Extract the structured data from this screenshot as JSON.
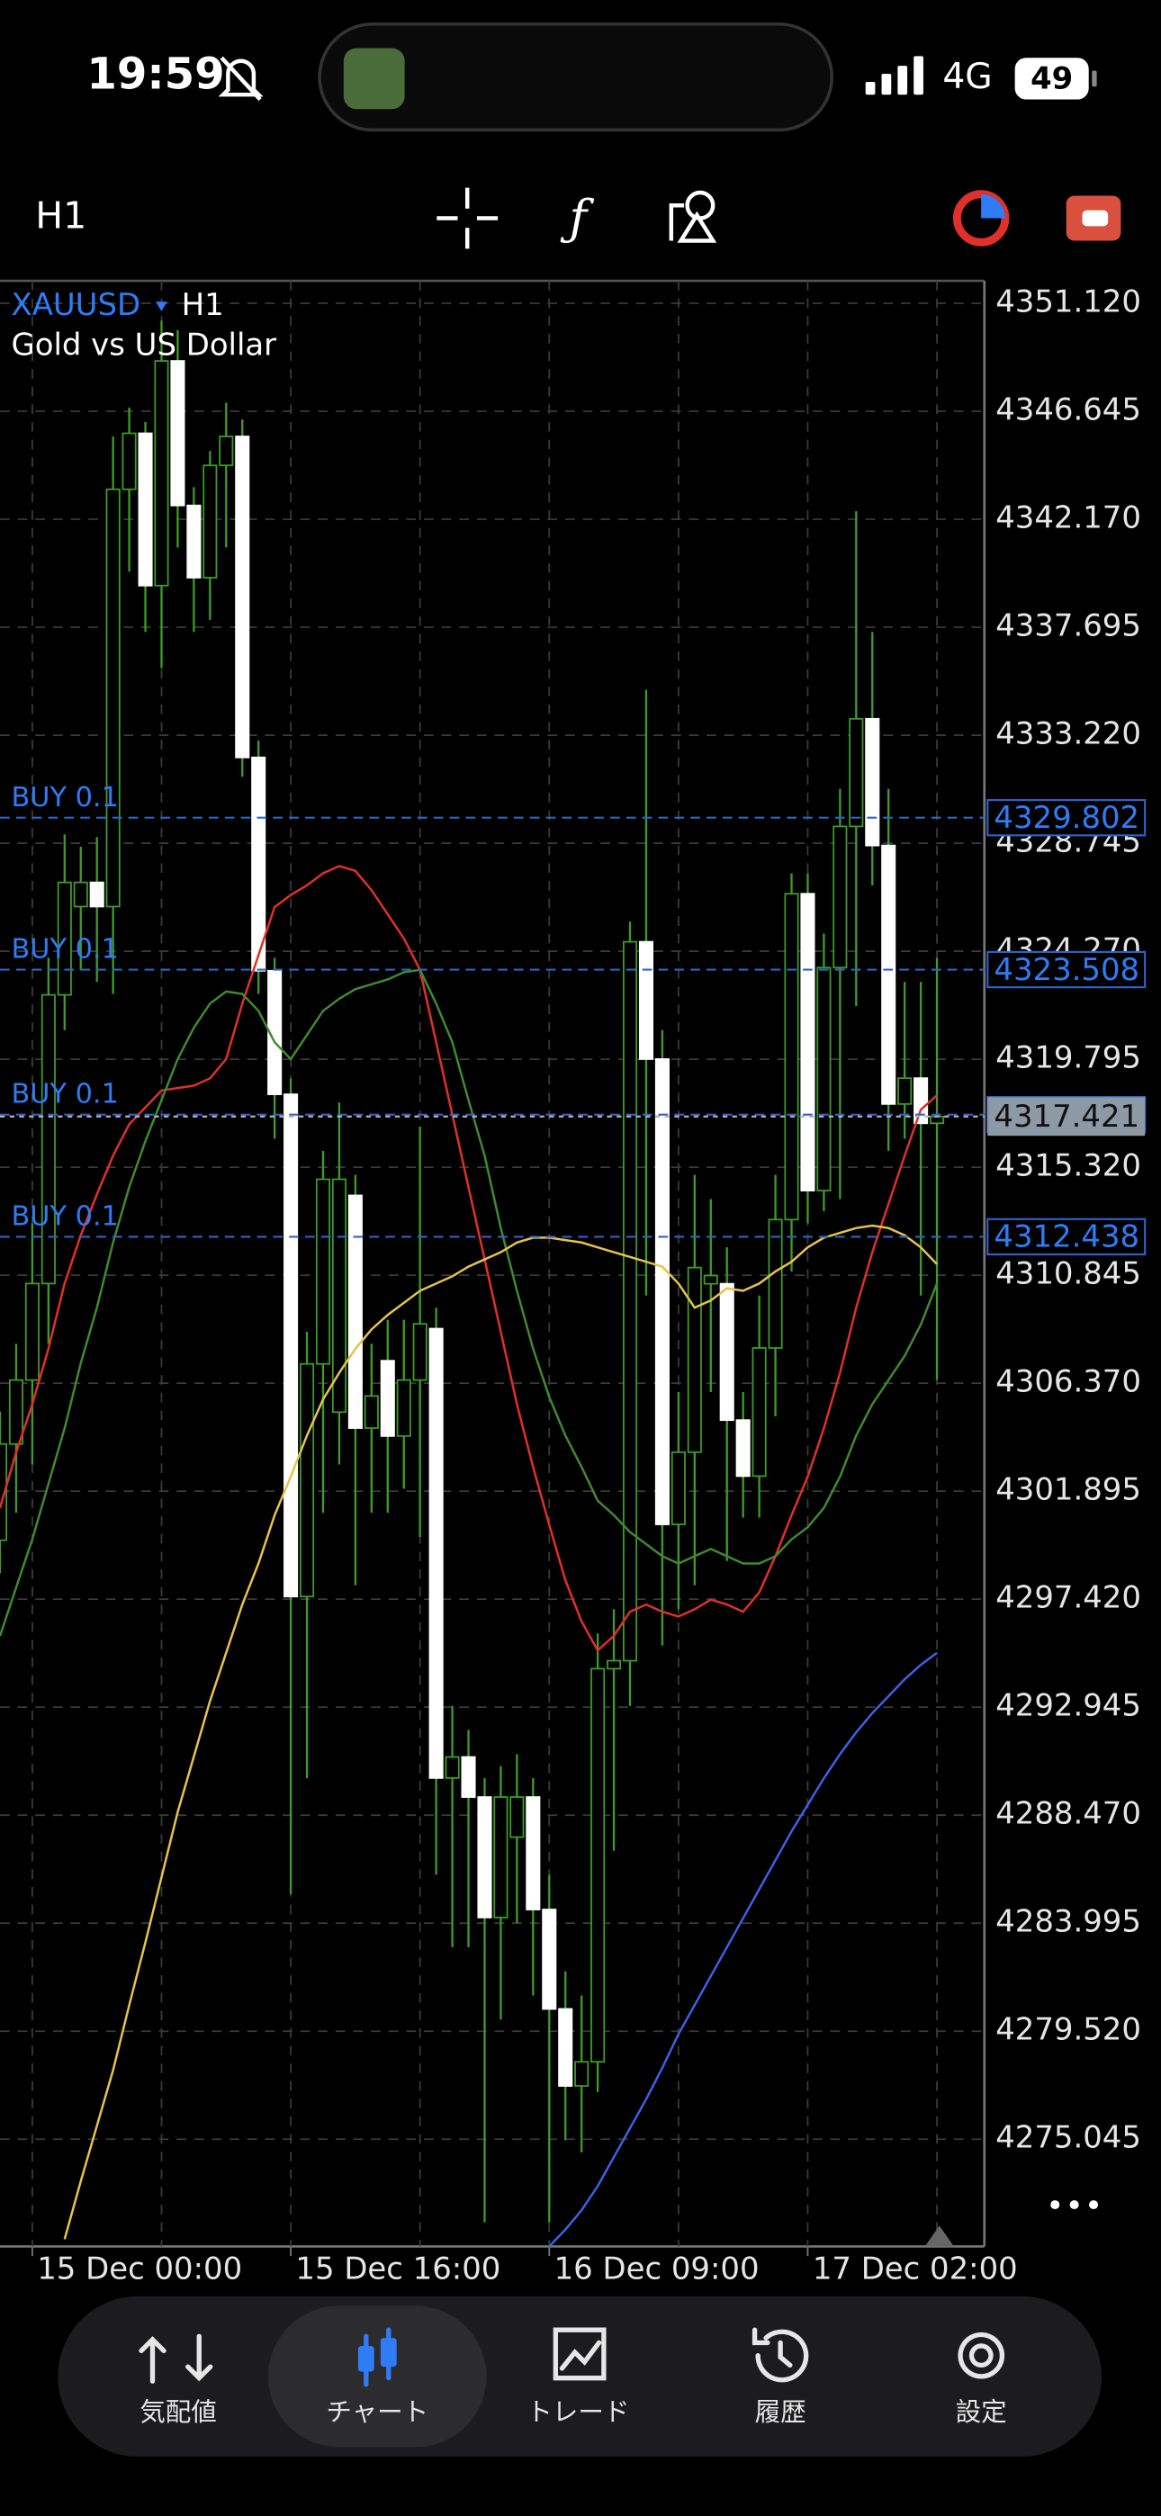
{
  "status_bar": {
    "time": "19:59",
    "network": "4G",
    "battery": "49"
  },
  "toolbar": {
    "timeframe": "H1"
  },
  "chart_data": {
    "type": "candlestick",
    "symbol": "XAUUSD",
    "timeframe": "H1",
    "subtitle": "Gold vs US Dollar",
    "categories": [
      null,
      null,
      "15 Dec 00:00",
      null,
      null,
      null,
      null,
      null,
      null,
      null,
      null,
      null,
      null,
      null,
      null,
      null,
      null,
      null,
      "15 Dec 16:00",
      null,
      null,
      null,
      null,
      null,
      null,
      null,
      null,
      null,
      null,
      null,
      null,
      null,
      null,
      null,
      "16 Dec 09:00",
      null,
      null,
      null,
      null,
      null,
      null,
      null,
      null,
      null,
      null,
      null,
      null,
      null,
      null,
      null,
      "17 Dec 02:00",
      null,
      null,
      null,
      null,
      null,
      null,
      null,
      null
    ],
    "open": [
      4299.86,
      4303.85,
      4306.5,
      4310.5,
      4322.46,
      4326.12,
      4327.12,
      4326.12,
      4343.41,
      4345.73,
      4339.42,
      4348.73,
      4342.74,
      4339.75,
      4344.4,
      4345.6,
      4332.3,
      4323.46,
      4318.34,
      4297.53,
      4307.17,
      4305.17,
      4314.15,
      4304.51,
      4307.3,
      4304.18,
      4306.5,
      4308.63,
      4290.01,
      4290.88,
      4289.22,
      4284.23,
      4287.56,
      4289.22,
      4284.56,
      4280.44,
      4277.25,
      4278.25,
      4294.54,
      4294.87,
      4324.66,
      4319.8,
      4300.52,
      4303.51,
      4310.49,
      4310.49,
      4304.84,
      4302.52,
      4307.83,
      4313.15,
      4326.65,
      4314.35,
      4323.59,
      4329.44,
      4333.9,
      4328.65,
      4317.94,
      4319.01,
      4317.14
    ],
    "high": [
      4305.2,
      4308,
      4313,
      4324,
      4329.11,
      4328.6,
      4329,
      4345.6,
      4346.8,
      4346.2,
      4350.4,
      4350,
      4343.5,
      4345,
      4347,
      4346.3,
      4333,
      4324,
      4319,
      4308.5,
      4316,
      4318,
      4315,
      4308,
      4309,
      4309,
      4317,
      4309.5,
      4293,
      4292,
      4290,
      4290.5,
      4291,
      4290,
      4286,
      4282,
      4281,
      4296,
      4297,
      4325.5,
      4335.1,
      4321,
      4306,
      4315,
      4314,
      4312,
      4306,
      4310,
      4315,
      4327.5,
      4327.5,
      4325,
      4331,
      4342.5,
      4337.5,
      4331,
      4323,
      4323,
      4324
    ],
    "low": [
      4298.5,
      4301,
      4303,
      4308,
      4321,
      4323.5,
      4323,
      4322.5,
      4340,
      4337.5,
      4336,
      4341,
      4337.5,
      4338,
      4341,
      4331.5,
      4322.5,
      4316.5,
      4285.2,
      4290,
      4301,
      4303,
      4298,
      4301,
      4301,
      4302,
      4300,
      4286,
      4283,
      4283,
      4271.6,
      4280,
      4284,
      4281,
      4271.6,
      4275,
      4274.5,
      4277,
      4287,
      4293,
      4310,
      4295.5,
      4297,
      4298,
      4306,
      4299,
      4300.8,
      4300.8,
      4305,
      4311,
      4313,
      4313.5,
      4314,
      4322,
      4327,
      4316,
      4316.5,
      4310,
      4306.5
    ],
    "close": [
      4303.85,
      4306.5,
      4310.5,
      4322.46,
      4327.12,
      4327.12,
      4326.12,
      4343.41,
      4345.73,
      4339.42,
      4348.73,
      4342.74,
      4339.75,
      4344.4,
      4345.6,
      4332.3,
      4323.46,
      4318.34,
      4297.53,
      4307.17,
      4314.82,
      4314.82,
      4304.51,
      4305.84,
      4304.18,
      4306.5,
      4308.83,
      4290.01,
      4290.88,
      4289.22,
      4284.23,
      4289.22,
      4289.22,
      4284.56,
      4280.44,
      4277.25,
      4278.25,
      4294.54,
      4294.87,
      4324.66,
      4319.8,
      4300.52,
      4303.51,
      4311.16,
      4310.83,
      4304.84,
      4302.52,
      4307.83,
      4313.15,
      4326.65,
      4314.35,
      4323.59,
      4329.44,
      4333.9,
      4328.65,
      4317.94,
      4319.01,
      4317.14,
      4317.42
    ],
    "up_color": "#000000",
    "down_color": "#ffffff",
    "wick_color": "#3f9b2a",
    "series": [
      {
        "color": "#e0302a",
        "values": [
          4301.2,
          4303.5,
          4305.5,
          4307.8,
          4310.5,
          4312.5,
          4314.2,
          4315.8,
          4317.1,
          4317.8,
          4318.5,
          4318.6,
          4318.7,
          4319,
          4319.8,
          4322.1,
          4324.1,
          4326.1,
          4326.6,
          4327,
          4327.5,
          4327.8,
          4327.6,
          4326.8,
          4325.8,
          4324.8,
          4323.5,
          4320.5,
          4317.5,
          4314.5,
          4311.5,
          4308.5,
          4305.5,
          4302.9,
          4300.5,
          4298.2,
          4296.5,
          4295.3,
          4295.9,
          4296.9,
          4297.2,
          4296.9,
          4296.7,
          4297,
          4297.4,
          4297.2,
          4296.9,
          4297.7,
          4299.2,
          4300.9,
          4302.5,
          4304.5,
          4306.8,
          4309.5,
          4311.8,
          4313.8,
          4315.8,
          4317.7,
          4318.3
        ]
      },
      {
        "color": "#3f8a2f",
        "values": [
          4295.9,
          4297.9,
          4299.9,
          4302.2,
          4304.5,
          4307.2,
          4309.5,
          4312.2,
          4314.5,
          4316.4,
          4318.1,
          4319.8,
          4321.1,
          4322.1,
          4322.6,
          4322.5,
          4321.8,
          4320.5,
          4319.8,
          4320.8,
          4321.8,
          4322.3,
          4322.7,
          4322.9,
          4323.1,
          4323.4,
          4323.5,
          4322.1,
          4320.5,
          4318.1,
          4315.8,
          4312.8,
          4310.2,
          4307.8,
          4305.8,
          4304.2,
          4302.9,
          4301.5,
          4300.9,
          4300.2,
          4299.7,
          4299.2,
          4298.9,
          4299.2,
          4299.5,
          4299.2,
          4298.9,
          4298.9,
          4299.2,
          4299.9,
          4300.4,
          4301.2,
          4302.5,
          4304.2,
          4305.5,
          4306.5,
          4307.5,
          4308.8,
          4310.5
        ]
      },
      {
        "color": "#e6c34a",
        "values": [
          null,
          null,
          null,
          null,
          4270.9,
          4273.3,
          4275.6,
          4277.9,
          4280.6,
          4283.2,
          4285.9,
          4288.6,
          4290.9,
          4293.2,
          4295.2,
          4297.2,
          4298.9,
          4300.9,
          4302.5,
          4304.2,
          4305.7,
          4306.8,
          4307.8,
          4308.6,
          4309.2,
          4309.7,
          4310.2,
          4310.5,
          4310.8,
          4311.2,
          4311.5,
          4311.8,
          4312.2,
          4312.4,
          4312.4,
          4312.3,
          4312.2,
          4312,
          4311.8,
          4311.6,
          4311.4,
          4311.2,
          4310.5,
          4309.5,
          4309.8,
          4310.3,
          4310.2,
          4310.5,
          4311,
          4311.4,
          4312,
          4312.4,
          4312.6,
          4312.8,
          4312.9,
          4312.8,
          4312.5,
          4312,
          4311.3
        ]
      },
      {
        "color": "#3a62e6",
        "values": [
          null,
          null,
          null,
          null,
          null,
          null,
          null,
          null,
          null,
          null,
          null,
          null,
          null,
          null,
          null,
          null,
          null,
          null,
          null,
          null,
          null,
          null,
          null,
          null,
          null,
          null,
          null,
          null,
          null,
          null,
          null,
          null,
          null,
          null,
          4270.6,
          4271.3,
          4272.1,
          4273.1,
          4274.3,
          4275.5,
          4276.7,
          4278,
          4279.4,
          4280.6,
          4281.8,
          4283,
          4284.2,
          4285.4,
          4286.6,
          4287.8,
          4288.9,
          4290,
          4291,
          4291.9,
          4292.7,
          4293.4,
          4294.1,
          4294.7,
          4295.2
        ]
      }
    ],
    "ylim": [
      4270.6,
      4352.05
    ],
    "yticks": [
      {
        "value": 4351.12,
        "label": "4351.120"
      },
      4346.645,
      {
        "value": 4342.17,
        "label": "4342.170"
      },
      4337.695,
      {
        "value": 4333.22,
        "label": "4333.220"
      },
      4328.745,
      {
        "value": 4324.27,
        "label": "4324.270"
      },
      4319.795,
      {
        "value": 4315.32,
        "label": "4315.320"
      },
      4310.845,
      {
        "value": 4306.37,
        "label": "4306.370"
      },
      4301.895,
      {
        "value": 4297.42,
        "label": "4297.420"
      },
      4292.945,
      {
        "value": 4288.47,
        "label": "4288.470"
      },
      4283.995,
      {
        "value": 4279.52,
        "label": "4279.520"
      },
      4275.045
    ],
    "grid": true,
    "positions": [
      {
        "label": "BUY 0.1",
        "price": 4329.802
      },
      {
        "label": "BUY 0.1",
        "price": 4323.508
      },
      {
        "label": "BUY 0.1",
        "price": 4317.5
      },
      {
        "label": "BUY 0.1",
        "price": 4312.438
      }
    ],
    "current_price": 4317.421
  },
  "tab_bar": {
    "tabs": [
      "気配値",
      "チャート",
      "トレード",
      "履歴",
      "設定"
    ],
    "active": 1
  }
}
